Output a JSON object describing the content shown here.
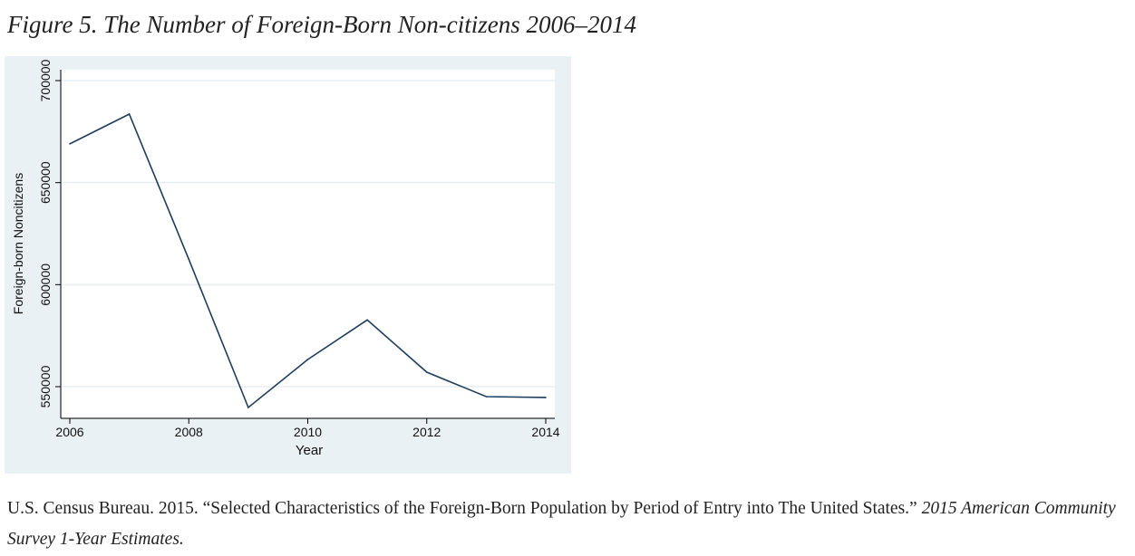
{
  "title": "Figure 5. The Number of Foreign-Born Non-citizens 2006–2014",
  "source": {
    "text": "U.S. Census Bureau. 2015. “Selected Characteristics of the Foreign-Born Population by Period of Entry into The United States.” ",
    "italic": "2015 American Community Survey 1-Year Estimates."
  },
  "chart_data": {
    "type": "line",
    "xlabel": "Year",
    "ylabel": "Foreign-born Noncitizens",
    "xlim": [
      2006,
      2014
    ],
    "ylim": [
      540000,
      705000
    ],
    "x_ticks": [
      2006,
      2008,
      2010,
      2012,
      2014
    ],
    "y_ticks": [
      550000,
      600000,
      650000,
      700000
    ],
    "grid": true,
    "x": [
      2006,
      2007,
      2008,
      2009,
      2010,
      2011,
      2012,
      2013,
      2014
    ],
    "values": [
      669000,
      683600,
      612400,
      539800,
      563300,
      582700,
      557100,
      545100,
      544700
    ],
    "colors": {
      "line": "#1f3d5c",
      "background": "#eaf1f4",
      "plot": "#ffffff",
      "grid": "#e6eef2"
    }
  }
}
